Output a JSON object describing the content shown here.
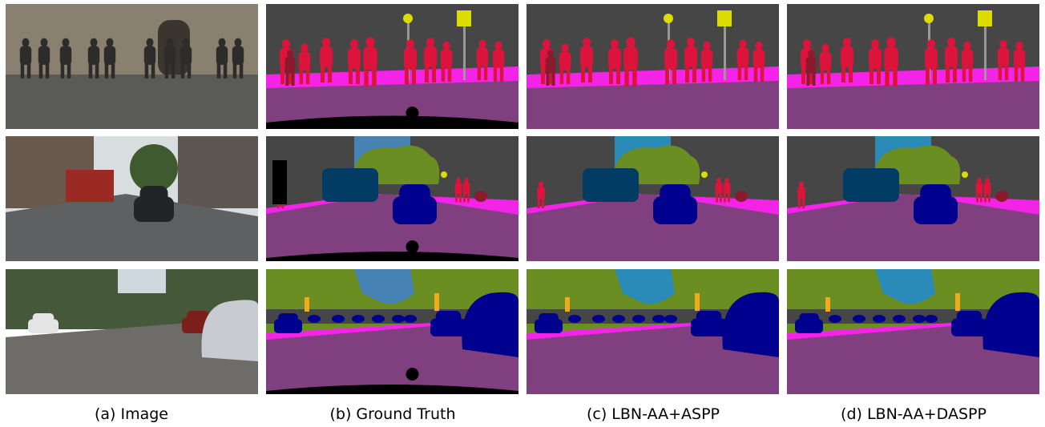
{
  "captions": [
    "(a) Image",
    "(b) Ground Truth",
    "(c) LBN-AA+ASPP",
    "(d) LBN-AA+DASPP"
  ]
}
